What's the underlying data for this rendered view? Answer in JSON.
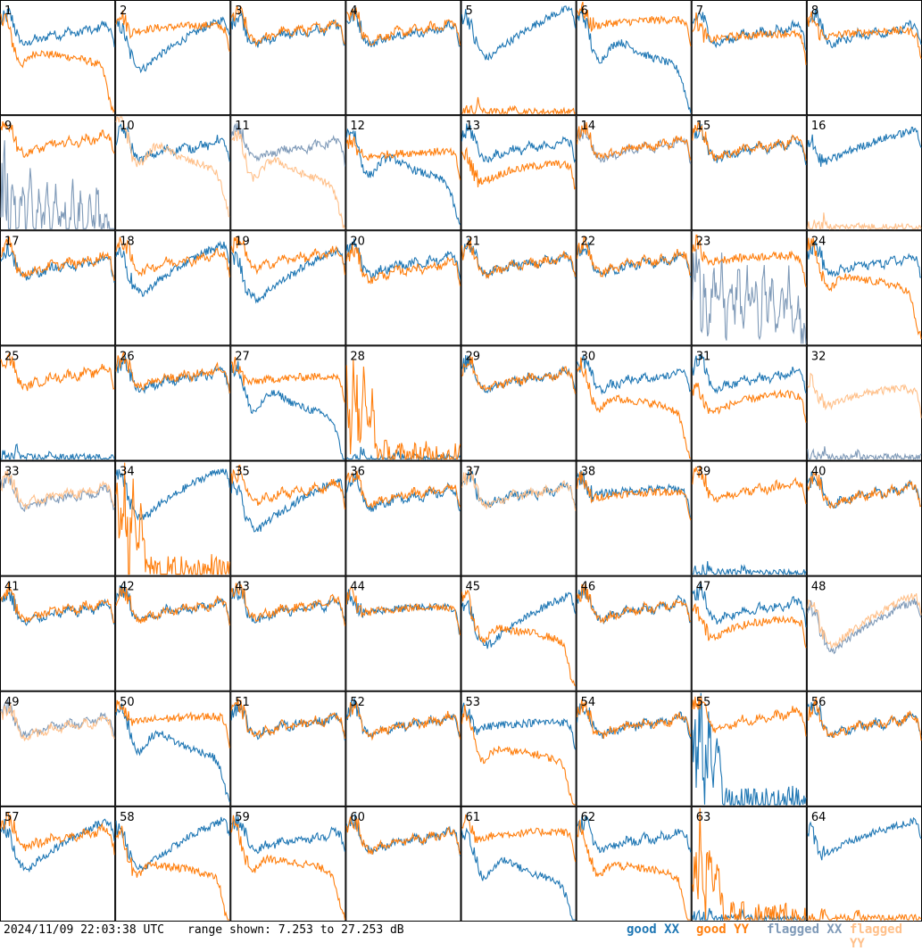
{
  "footer": {
    "timestamp": "2024/11/09 22:03:38 UTC",
    "range": "range shown: 7.253 to 27.253 dB"
  },
  "legend": {
    "good_xx": "good XX",
    "good_yy": "good YY",
    "flagged_xx": "flagged XX",
    "flagged_yy": "flagged YY"
  },
  "colors": {
    "good_xx": "#1f77b4",
    "good_yy": "#ff7f0e",
    "flagged_xx": "#7f9ab8",
    "flagged_yy": "#ffc08a"
  },
  "chart_data": {
    "type": "line",
    "ylim": [
      7.253,
      27.253
    ],
    "grid_cols": 8,
    "grid_rows": 8,
    "panel_labels": [
      "1",
      "2",
      "3",
      "4",
      "5",
      "6",
      "7",
      "8",
      "9",
      "10",
      "11",
      "12",
      "13",
      "14",
      "15",
      "16",
      "17",
      "18",
      "19",
      "20",
      "21",
      "22",
      "23",
      "24",
      "25",
      "26",
      "27",
      "28",
      "29",
      "30",
      "31",
      "32",
      "33",
      "34",
      "35",
      "36",
      "37",
      "38",
      "39",
      "40",
      "41",
      "42",
      "43",
      "44",
      "45",
      "46",
      "47",
      "48",
      "49",
      "50",
      "51",
      "52",
      "53",
      "54",
      "55",
      "56",
      "57",
      "58",
      "59",
      "60",
      "61",
      "62",
      "63",
      "64"
    ],
    "series_names": [
      "good XX",
      "good YY",
      "flagged XX",
      "flagged YY"
    ],
    "patterns": {
      "std": [
        23.5,
        24.5,
        25.0,
        23.5,
        21.0,
        20.0,
        19.5,
        20.0,
        20.8,
        20.4,
        20.5,
        21.0,
        21.8,
        21.4,
        21.0,
        21.5,
        22.2,
        21.8,
        21.3,
        21.8,
        22.6,
        22.2,
        21.8,
        22.4,
        23.4,
        23.0,
        22.5,
        19.0
      ],
      "hump": [
        24.0,
        25.0,
        24.0,
        21.0,
        18.0,
        16.8,
        17.0,
        18.0,
        19.0,
        19.8,
        20.0,
        19.8,
        19.5,
        19.0,
        18.5,
        18.2,
        17.8,
        17.5,
        17.2,
        17.0,
        16.8,
        16.5,
        16.2,
        15.8,
        15.0,
        13.0,
        10.0,
        7.5
      ],
      "sag": [
        23.5,
        24.0,
        22.5,
        19.5,
        18.0,
        16.8,
        16.2,
        16.5,
        17.2,
        18.0,
        18.6,
        19.0,
        19.5,
        20.0,
        20.5,
        21.0,
        21.5,
        22.0,
        22.4,
        22.8,
        23.2,
        23.6,
        24.0,
        24.3,
        24.6,
        25.0,
        24.8,
        22.0
      ],
      "plat": [
        23.5,
        24.5,
        23.0,
        21.5,
        21.0,
        21.0,
        21.2,
        21.3,
        21.4,
        21.5,
        21.6,
        21.6,
        21.7,
        21.7,
        21.8,
        21.8,
        21.9,
        21.9,
        22.0,
        22.0,
        22.0,
        22.0,
        22.1,
        22.1,
        22.0,
        21.8,
        21.0,
        17.0
      ],
      "rise": [
        22.0,
        24.0,
        21.0,
        19.5,
        19.2,
        19.5,
        19.8,
        20.0,
        20.5,
        20.8,
        21.2,
        21.5,
        21.8,
        22.0,
        22.3,
        22.6,
        22.9,
        23.1,
        23.4,
        23.6,
        23.8,
        24.0,
        24.2,
        24.4,
        24.6,
        24.8,
        25.0,
        22.0
      ],
      "low": [
        20.0,
        20.5,
        19.0,
        17.0,
        16.0,
        15.8,
        16.0,
        16.3,
        16.6,
        17.0,
        17.3,
        17.5,
        17.7,
        17.9,
        18.0,
        18.2,
        18.3,
        18.4,
        18.5,
        18.6,
        18.7,
        18.8,
        18.9,
        18.8,
        18.7,
        18.6,
        18.0,
        14.0
      ],
      "droop": [
        24.0,
        25.0,
        22.0,
        19.5,
        17.0,
        16.0,
        16.5,
        17.5,
        18.0,
        18.2,
        18.0,
        17.8,
        17.8,
        17.7,
        17.6,
        17.5,
        17.4,
        17.3,
        17.2,
        17.0,
        16.8,
        16.6,
        16.3,
        16.0,
        15.5,
        13.0,
        9.0,
        7.5
      ],
      "spike": [
        7.5,
        7.5,
        7.5,
        7.5,
        9.0,
        7.5,
        7.5,
        7.5,
        7.5,
        7.5,
        7.5,
        7.5,
        8.5,
        7.5,
        7.5,
        7.5,
        7.5,
        7.5,
        7.5,
        7.5,
        7.5,
        7.5,
        7.5,
        7.5,
        7.5,
        7.5,
        7.5,
        7.5
      ],
      "noisy": [
        18.0,
        22.0,
        14.0,
        20.0,
        11.0,
        19.0,
        13.0,
        21.0,
        9.0,
        18.0,
        12.0,
        20.0,
        10.0,
        19.0,
        14.0,
        17.0,
        9.0,
        20.0,
        12.0,
        18.0,
        10.0,
        16.0,
        13.0,
        19.0,
        9.0,
        14.0,
        9.0,
        8.0
      ],
      "burst": [
        20.0,
        14.0,
        24.0,
        10.0,
        22.0,
        12.0,
        18.0,
        9.0,
        8.0,
        8.0,
        7.5,
        7.5,
        7.5,
        7.5,
        7.5,
        7.5,
        7.5,
        7.5,
        7.5,
        7.5,
        7.5,
        7.5,
        7.5,
        8.5,
        7.5,
        7.5,
        7.5,
        7.5
      ]
    },
    "panels": [
      {
        "xx": [
          "std",
          "good",
          0
        ],
        "yy": [
          "droop",
          "good",
          0
        ]
      },
      {
        "xx": [
          "sag",
          "good",
          -1
        ],
        "yy": [
          "plat",
          "good",
          1
        ]
      },
      {
        "xx": [
          "std",
          "good",
          0
        ],
        "yy": [
          "std",
          "good",
          0.5
        ]
      },
      {
        "xx": [
          "std",
          "good",
          0
        ],
        "yy": [
          "std",
          "good",
          0.5
        ]
      },
      {
        "xx": [
          "sag",
          "good",
          1
        ],
        "yy": [
          "spike",
          "good",
          0
        ]
      },
      {
        "xx": [
          "hump",
          "good",
          0
        ],
        "yy": [
          "plat",
          "good",
          2
        ]
      },
      {
        "xx": [
          "std",
          "good",
          0
        ],
        "yy": [
          "plat",
          "good",
          -0.5
        ]
      },
      {
        "xx": [
          "std",
          "good",
          0
        ],
        "yy": [
          "plat",
          "good",
          0
        ]
      },
      {
        "xx": [
          "noisy",
          "flagged",
          -5
        ],
        "yy": [
          "std",
          "good",
          1
        ]
      },
      {
        "xx": [
          "std",
          "good",
          0
        ],
        "yy": [
          "hump",
          "flagged",
          2
        ]
      },
      {
        "xx": [
          "std",
          "flagged",
          0
        ],
        "yy": [
          "hump",
          "flagged",
          -0.5
        ]
      },
      {
        "xx": [
          "hump",
          "good",
          0
        ],
        "yy": [
          "plat",
          "good",
          -1
        ]
      },
      {
        "xx": [
          "std",
          "good",
          0
        ],
        "yy": [
          "low",
          "good",
          0
        ]
      },
      {
        "xx": [
          "std",
          "flagged",
          0
        ],
        "yy": [
          "std",
          "good",
          0.3
        ]
      },
      {
        "xx": [
          "std",
          "good",
          0
        ],
        "yy": [
          "std",
          "good",
          0.2
        ]
      },
      {
        "xx": [
          "rise",
          "good",
          0
        ],
        "yy": [
          "spike",
          "flagged",
          0
        ]
      },
      {
        "xx": [
          "std",
          "good",
          -0.5
        ],
        "yy": [
          "std",
          "good",
          0
        ]
      },
      {
        "xx": [
          "sag",
          "good",
          0
        ],
        "yy": [
          "std",
          "good",
          0.5
        ]
      },
      {
        "xx": [
          "sag",
          "good",
          -1
        ],
        "yy": [
          "std",
          "good",
          1
        ]
      },
      {
        "xx": [
          "std",
          "good",
          0
        ],
        "yy": [
          "std",
          "good",
          -1
        ]
      },
      {
        "xx": [
          "std",
          "good",
          0
        ],
        "yy": [
          "std",
          "good",
          0
        ]
      },
      {
        "xx": [
          "std",
          "good",
          0
        ],
        "yy": [
          "std",
          "good",
          0.3
        ]
      },
      {
        "xx": [
          "noisy",
          "flagged",
          0
        ],
        "yy": [
          "plat",
          "good",
          1
        ]
      },
      {
        "xx": [
          "std",
          "good",
          0
        ],
        "yy": [
          "droop",
          "good",
          1
        ]
      },
      {
        "xx": [
          "spike",
          "good",
          0
        ],
        "yy": [
          "std",
          "good",
          0.5
        ]
      },
      {
        "xx": [
          "std",
          "good",
          0
        ],
        "yy": [
          "std",
          "good",
          0.5
        ]
      },
      {
        "xx": [
          "hump",
          "good",
          -1
        ],
        "yy": [
          "plat",
          "good",
          0
        ]
      },
      {
        "xx": [
          "spike",
          "good",
          0
        ],
        "yy": [
          "burst",
          "good",
          0
        ]
      },
      {
        "xx": [
          "std",
          "good",
          0
        ],
        "yy": [
          "std",
          "good",
          0
        ]
      },
      {
        "xx": [
          "std",
          "good",
          0
        ],
        "yy": [
          "droop",
          "good",
          0
        ]
      },
      {
        "xx": [
          "std",
          "good",
          0
        ],
        "yy": [
          "low",
          "good",
          0
        ]
      },
      {
        "xx": [
          "spike",
          "flagged",
          0
        ],
        "yy": [
          "low",
          "flagged",
          1
        ]
      },
      {
        "xx": [
          "std",
          "flagged",
          -0.5
        ],
        "yy": [
          "std",
          "flagged",
          0
        ]
      },
      {
        "xx": [
          "sag",
          "good",
          1
        ],
        "yy": [
          "burst",
          "good",
          0
        ]
      },
      {
        "xx": [
          "sag",
          "good",
          -1
        ],
        "yy": [
          "std",
          "good",
          0.5
        ]
      },
      {
        "xx": [
          "std",
          "good",
          -0.5
        ],
        "yy": [
          "std",
          "good",
          0
        ]
      },
      {
        "xx": [
          "std",
          "good",
          0
        ],
        "yy": [
          "std",
          "flagged",
          0
        ]
      },
      {
        "xx": [
          "plat",
          "good",
          0.5
        ],
        "yy": [
          "plat",
          "good",
          0
        ]
      },
      {
        "xx": [
          "spike",
          "good",
          0
        ],
        "yy": [
          "std",
          "good",
          0.8
        ]
      },
      {
        "xx": [
          "std",
          "good",
          0
        ],
        "yy": [
          "std",
          "good",
          0
        ]
      },
      {
        "xx": [
          "std",
          "good",
          -0.5
        ],
        "yy": [
          "std",
          "good",
          0
        ]
      },
      {
        "xx": [
          "std",
          "good",
          0
        ],
        "yy": [
          "std",
          "good",
          0
        ]
      },
      {
        "xx": [
          "std",
          "good",
          0
        ],
        "yy": [
          "std",
          "good",
          0.3
        ]
      },
      {
        "xx": [
          "plat",
          "good",
          0
        ],
        "yy": [
          "plat",
          "good",
          0
        ]
      },
      {
        "xx": [
          "sag",
          "good",
          -1
        ],
        "yy": [
          "droop",
          "good",
          0
        ]
      },
      {
        "xx": [
          "std",
          "good",
          0
        ],
        "yy": [
          "std",
          "good",
          0
        ]
      },
      {
        "xx": [
          "std",
          "good",
          0
        ],
        "yy": [
          "low",
          "good",
          1
        ]
      },
      {
        "xx": [
          "sag",
          "flagged",
          -2
        ],
        "yy": [
          "sag",
          "flagged",
          -1
        ]
      },
      {
        "xx": [
          "std",
          "flagged",
          0
        ],
        "yy": [
          "std",
          "flagged",
          -0.5
        ]
      },
      {
        "xx": [
          "hump",
          "good",
          0
        ],
        "yy": [
          "plat",
          "good",
          1
        ]
      },
      {
        "xx": [
          "std",
          "good",
          0
        ],
        "yy": [
          "std",
          "good",
          0
        ]
      },
      {
        "xx": [
          "std",
          "good",
          0
        ],
        "yy": [
          "std",
          "good",
          0
        ]
      },
      {
        "xx": [
          "plat",
          "good",
          0
        ],
        "yy": [
          "droop",
          "good",
          -1
        ]
      },
      {
        "xx": [
          "std",
          "good",
          0
        ],
        "yy": [
          "std",
          "good",
          0
        ]
      },
      {
        "xx": [
          "burst",
          "good",
          0
        ],
        "yy": [
          "std",
          "good",
          1
        ]
      },
      {
        "xx": [
          "std",
          "good",
          0
        ],
        "yy": [
          "std",
          "good",
          0
        ]
      },
      {
        "xx": [
          "sag",
          "good",
          0
        ],
        "yy": [
          "std",
          "good",
          0.5
        ]
      },
      {
        "xx": [
          "sag",
          "good",
          0
        ],
        "yy": [
          "droop",
          "good",
          -1
        ]
      },
      {
        "xx": [
          "std",
          "good",
          0
        ],
        "yy": [
          "droop",
          "good",
          0
        ]
      },
      {
        "xx": [
          "std",
          "good",
          0
        ],
        "yy": [
          "std",
          "good",
          0
        ]
      },
      {
        "xx": [
          "hump",
          "good",
          -2
        ],
        "yy": [
          "plat",
          "good",
          1
        ]
      },
      {
        "xx": [
          "std",
          "good",
          0
        ],
        "yy": [
          "droop",
          "good",
          -1
        ]
      },
      {
        "xx": [
          "spike",
          "good",
          0
        ],
        "yy": [
          "burst",
          "good",
          0
        ]
      },
      {
        "xx": [
          "rise",
          "good",
          0
        ],
        "yy": [
          "spike",
          "good",
          0
        ]
      }
    ]
  }
}
